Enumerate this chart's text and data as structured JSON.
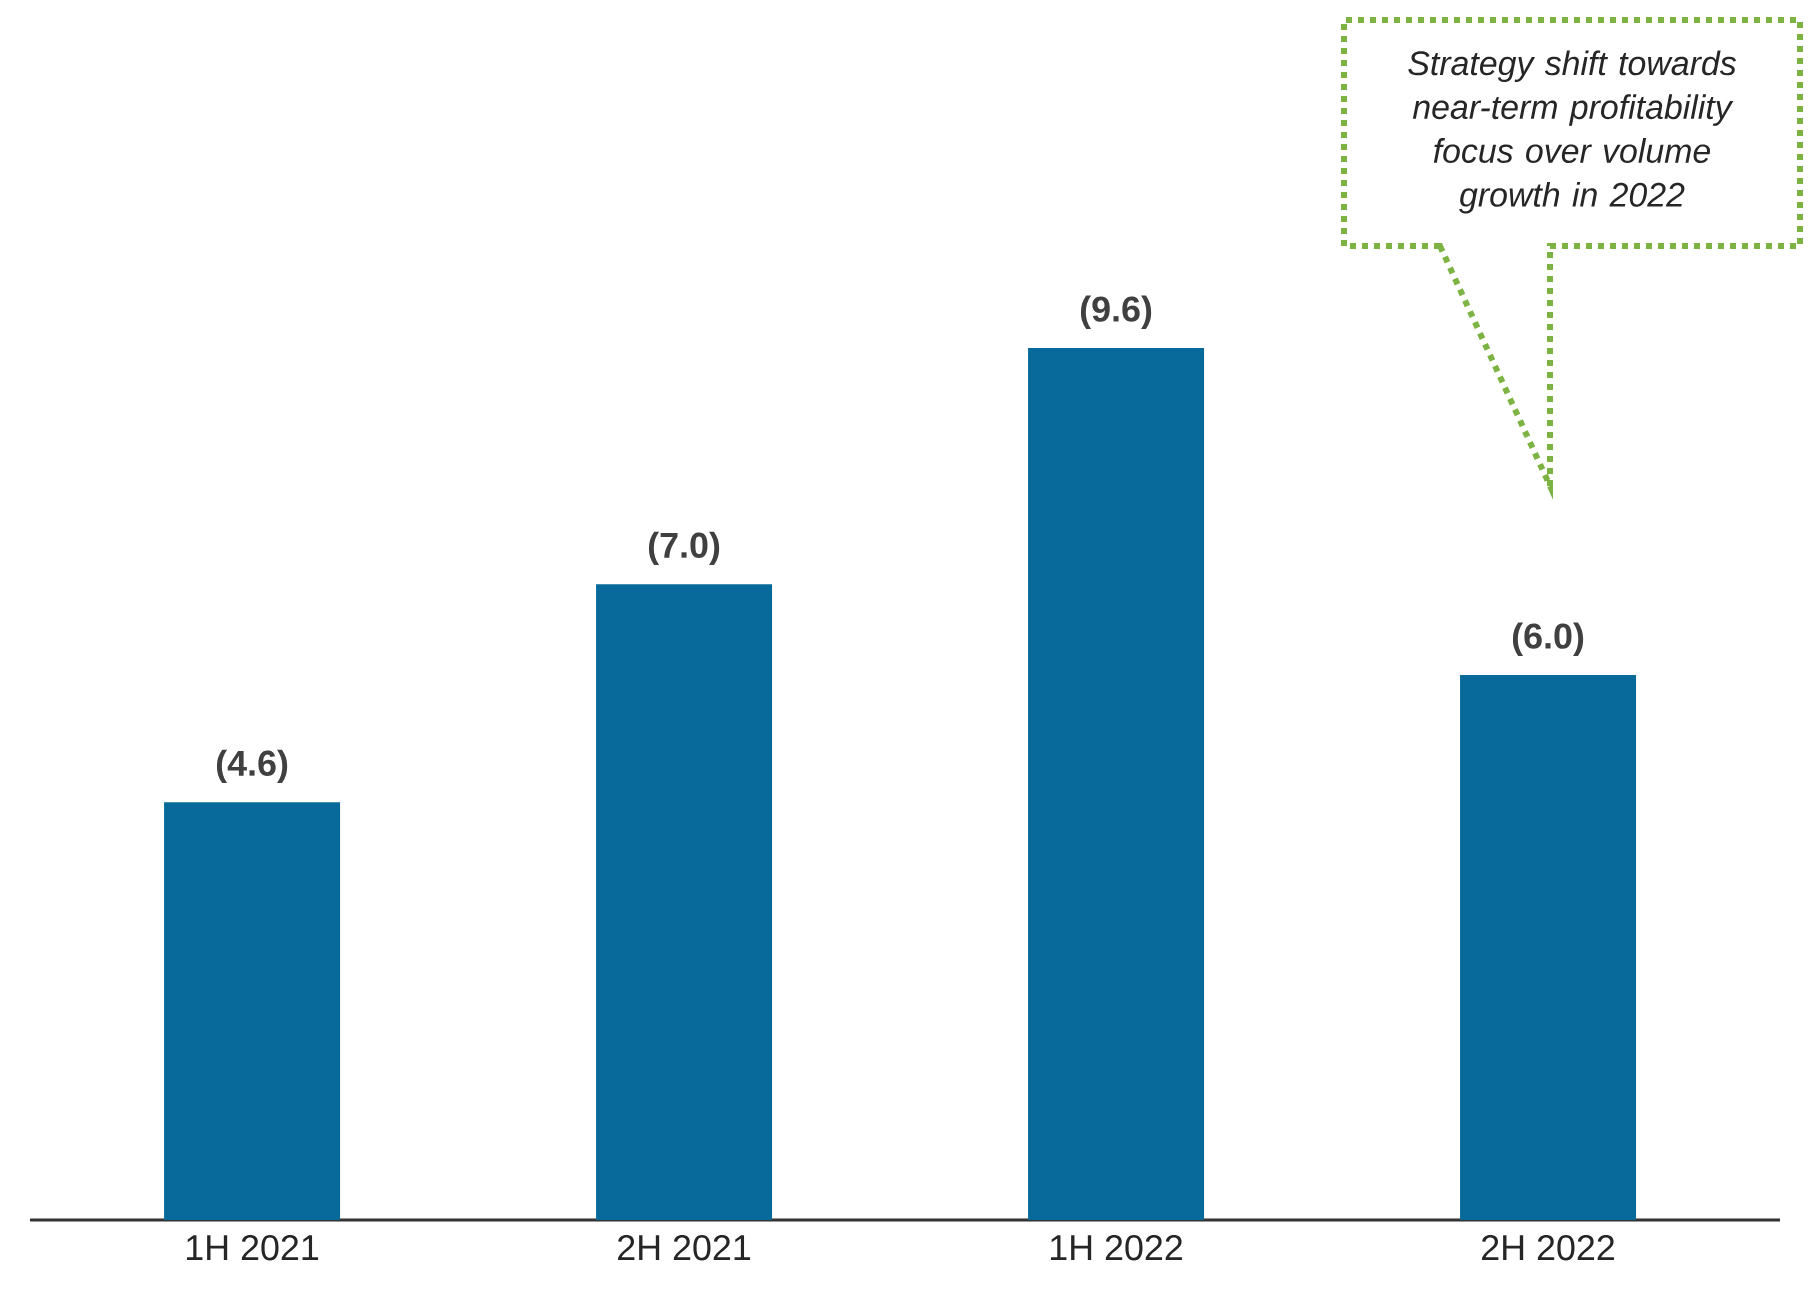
{
  "chart_data": {
    "type": "bar",
    "categories": [
      "1H 2021",
      "2H 2021",
      "1H 2022",
      "2H 2022"
    ],
    "values": [
      4.6,
      7.0,
      9.6,
      6.0
    ],
    "value_labels": [
      "(4.6)",
      "(7.0)",
      "(9.6)",
      "(6.0)"
    ],
    "color": "#086a9a",
    "annotations": [
      "Strategy shift towards near-term profitability focus over volume growth in 2022"
    ]
  }
}
